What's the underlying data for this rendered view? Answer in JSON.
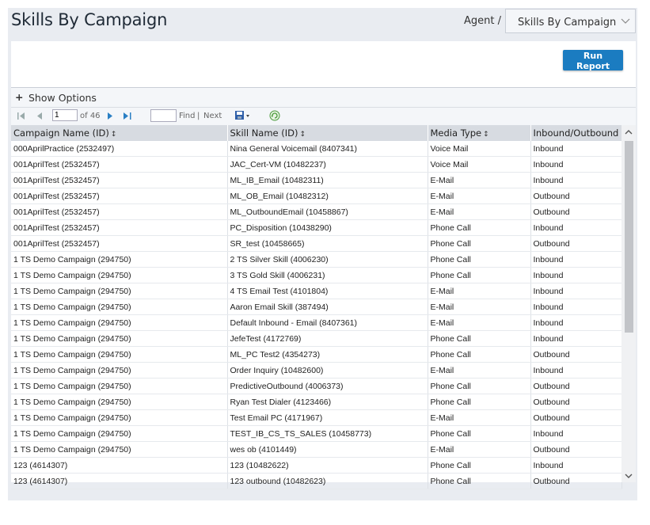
{
  "header": {
    "title": "Skills By Campaign",
    "breadcrumb": "Agent /",
    "report_select": "Skills By Campaign"
  },
  "actions": {
    "run_report": "Run Report"
  },
  "options": {
    "plus": "+",
    "label": "Show Options"
  },
  "toolbar": {
    "page_value": "1",
    "of_pages": "of 46",
    "find": "Find",
    "sep": "|",
    "next": "Next"
  },
  "table": {
    "headers": [
      "Campaign Name (ID)",
      "Skill Name (ID)",
      "Media Type",
      "Inbound/Outbound"
    ],
    "sort_glyph": "↕",
    "rows": [
      [
        "000AprilPractice (2532497)",
        "Nina General Voicemail (8407341)",
        "Voice Mail",
        "Inbound"
      ],
      [
        "001AprilTest (2532457)",
        "JAC_Cert-VM (10482237)",
        "Voice Mail",
        "Inbound"
      ],
      [
        "001AprilTest (2532457)",
        "ML_IB_Email (10482311)",
        "E-Mail",
        "Inbound"
      ],
      [
        "001AprilTest (2532457)",
        "ML_OB_Email (10482312)",
        "E-Mail",
        "Outbound"
      ],
      [
        "001AprilTest (2532457)",
        "ML_OutboundEmail (10458867)",
        "E-Mail",
        "Outbound"
      ],
      [
        "001AprilTest (2532457)",
        "PC_Disposition (10438290)",
        "Phone Call",
        "Inbound"
      ],
      [
        "001AprilTest (2532457)",
        "SR_test (10458665)",
        "Phone Call",
        "Outbound"
      ],
      [
        "1 TS Demo Campaign (294750)",
        "2 TS Silver Skill (4006230)",
        "Phone Call",
        "Inbound"
      ],
      [
        "1 TS Demo Campaign (294750)",
        "3 TS Gold Skill (4006231)",
        "Phone Call",
        "Inbound"
      ],
      [
        "1 TS Demo Campaign (294750)",
        "4 TS Email Test (4101804)",
        "E-Mail",
        "Inbound"
      ],
      [
        "1 TS Demo Campaign (294750)",
        "Aaron Email Skill (387494)",
        "E-Mail",
        "Inbound"
      ],
      [
        "1 TS Demo Campaign (294750)",
        "Default Inbound - Email (8407361)",
        "E-Mail",
        "Inbound"
      ],
      [
        "1 TS Demo Campaign (294750)",
        "JefeTest (4172769)",
        "Phone Call",
        "Inbound"
      ],
      [
        "1 TS Demo Campaign (294750)",
        "ML_PC Test2 (4354273)",
        "Phone Call",
        "Outbound"
      ],
      [
        "1 TS Demo Campaign (294750)",
        "Order Inquiry (10482600)",
        "E-Mail",
        "Inbound"
      ],
      [
        "1 TS Demo Campaign (294750)",
        "PredictiveOutbound (4006373)",
        "Phone Call",
        "Outbound"
      ],
      [
        "1 TS Demo Campaign (294750)",
        "Ryan Test Dialer (4123466)",
        "Phone Call",
        "Outbound"
      ],
      [
        "1 TS Demo Campaign (294750)",
        "Test Email PC (4171967)",
        "E-Mail",
        "Outbound"
      ],
      [
        "1 TS Demo Campaign (294750)",
        "TEST_IB_CS_TS_SALES (10458773)",
        "Phone Call",
        "Inbound"
      ],
      [
        "1 TS Demo Campaign (294750)",
        "wes ob (4101449)",
        "E-Mail",
        "Outbound"
      ],
      [
        "123 (4614307)",
        "123 (10482622)",
        "Phone Call",
        "Inbound"
      ],
      [
        "123 (4614307)",
        "123 outbound (10482623)",
        "Phone Call",
        "Outbound"
      ]
    ]
  },
  "colors": {
    "accent": "#1b7cc1",
    "header_bg": "#e9ecf1",
    "table_header_bg": "#d7dbe1"
  }
}
